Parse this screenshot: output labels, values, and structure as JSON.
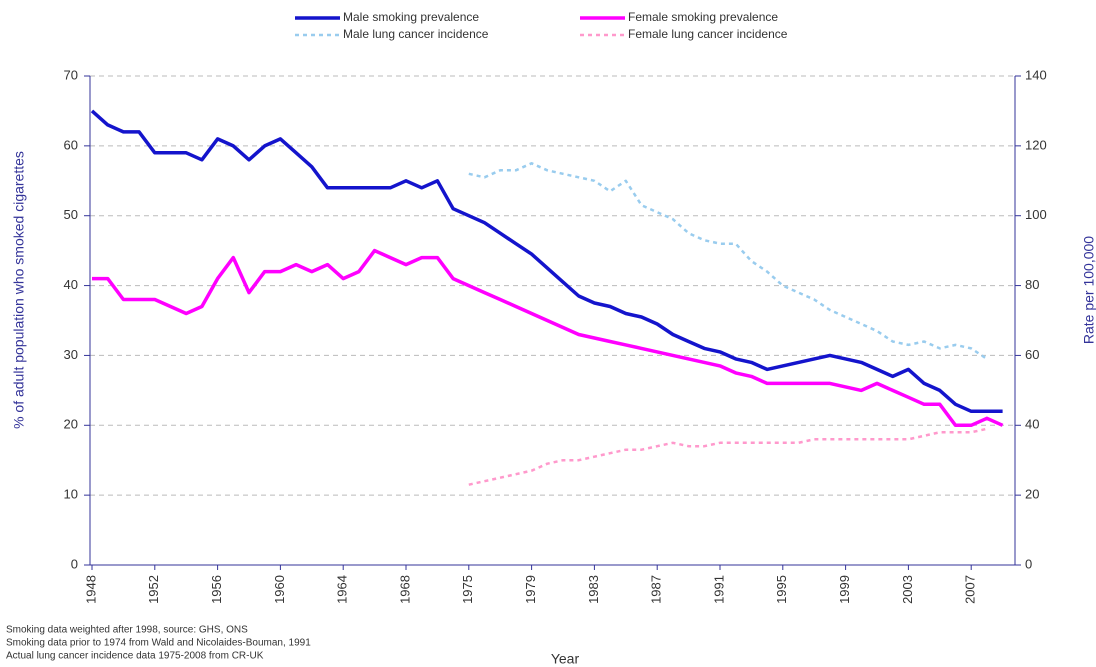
{
  "chart_data": {
    "type": "line",
    "x_label": "Year",
    "y_label": "% of adult population who smoked cigarettes",
    "y2_label": "Rate per 100,000",
    "categories": [
      "1948",
      null,
      null,
      null,
      "1952",
      null,
      null,
      null,
      "1956",
      null,
      null,
      null,
      "1960",
      null,
      null,
      null,
      "1964",
      null,
      null,
      null,
      "1968",
      null,
      null,
      null,
      "1975",
      null,
      null,
      null,
      "1979",
      null,
      null,
      null,
      "1983",
      null,
      null,
      null,
      "1987",
      null,
      null,
      null,
      "1991",
      null,
      null,
      null,
      "1995",
      null,
      null,
      null,
      "1999",
      null,
      null,
      null,
      "2003",
      null,
      null,
      null,
      "2007",
      null,
      null
    ],
    "ylim": [
      0,
      70
    ],
    "yticks": [
      0,
      10,
      20,
      30,
      40,
      50,
      60,
      70
    ],
    "y2lim": [
      0,
      140
    ],
    "y2ticks": [
      0,
      20,
      40,
      60,
      80,
      100,
      120,
      140
    ],
    "grid": true,
    "series": [
      {
        "name": "Male smoking prevalence",
        "color": "#1414cc",
        "style": "solid",
        "values": [
          65,
          63,
          62,
          62,
          59,
          59,
          59,
          58,
          61,
          60,
          58,
          60,
          61,
          59,
          57,
          54,
          54,
          54,
          54,
          54,
          55,
          54,
          55,
          51,
          50,
          49,
          47.5,
          46,
          44.5,
          42.5,
          40.5,
          38.5,
          37.5,
          37,
          36,
          35.5,
          34.5,
          33,
          32,
          31,
          30.5,
          29.5,
          29,
          28,
          28.5,
          29,
          29.5,
          30,
          29.5,
          29,
          28,
          27,
          28,
          26,
          25,
          23,
          22,
          22,
          22
        ]
      },
      {
        "name": "Female smoking prevalence",
        "color": "#ff00ff",
        "style": "solid",
        "values": [
          41,
          41,
          38,
          38,
          38,
          37,
          36,
          37,
          41,
          44,
          39,
          42,
          42,
          43,
          42,
          43,
          41,
          42,
          45,
          44,
          43,
          44,
          44,
          41,
          40,
          39,
          38,
          37,
          36,
          35,
          34,
          33,
          32.5,
          32,
          31.5,
          31,
          30.5,
          30,
          29.5,
          29,
          28.5,
          27.5,
          27,
          26,
          26,
          26,
          26,
          26,
          25.5,
          25,
          26,
          25,
          24,
          23,
          23,
          20,
          20,
          21,
          20
        ]
      },
      {
        "name": "Male lung cancer incidence",
        "color": "#99ccee",
        "style": "dashed",
        "axis": "y2",
        "values": [
          null,
          null,
          null,
          null,
          null,
          null,
          null,
          null,
          null,
          null,
          null,
          null,
          null,
          null,
          null,
          null,
          null,
          null,
          null,
          null,
          null,
          null,
          null,
          null,
          112,
          111,
          113,
          113,
          115,
          113,
          112,
          111,
          110,
          107,
          110,
          103,
          101,
          99,
          95,
          93,
          92,
          92,
          87,
          84,
          80,
          78,
          76,
          73,
          71,
          69,
          67,
          64,
          63,
          64,
          62,
          63,
          62,
          59,
          null
        ]
      },
      {
        "name": "Female lung cancer incidence",
        "color": "#ff99cc",
        "style": "dashed",
        "axis": "y2",
        "values": [
          null,
          null,
          null,
          null,
          null,
          null,
          null,
          null,
          null,
          null,
          null,
          null,
          null,
          null,
          null,
          null,
          null,
          null,
          null,
          null,
          null,
          null,
          null,
          null,
          23,
          24,
          25,
          26,
          27,
          29,
          30,
          30,
          31,
          32,
          33,
          33,
          34,
          35,
          34,
          34,
          35,
          35,
          35,
          35,
          35,
          35,
          36,
          36,
          36,
          36,
          36,
          36,
          36,
          37,
          38,
          38,
          38,
          39,
          null
        ]
      }
    ],
    "notes": [
      "Smoking data weighted after 1998, source: GHS, ONS",
      "Smoking data prior to 1974 from Wald  and Nicolaides-Bouman, 1991",
      "Actual lung cancer incidence data 1975-2008 from CR-UK"
    ]
  }
}
